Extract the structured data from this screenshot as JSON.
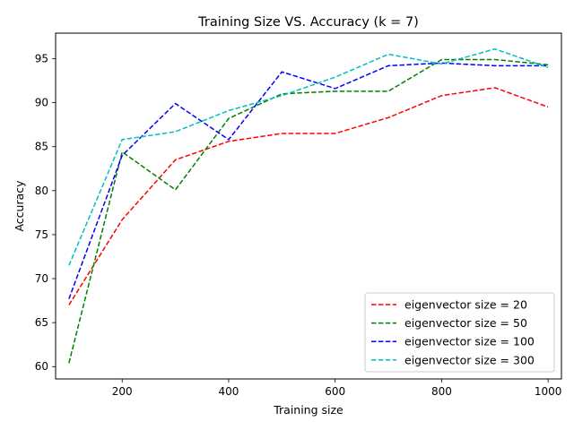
{
  "chart_data": {
    "type": "line",
    "title": "Training Size VS. Accuracy (k = 7)",
    "xlabel": "Training size",
    "ylabel": "Accuracy",
    "xlim": [
      75,
      1025
    ],
    "ylim": [
      58.6,
      97.9
    ],
    "xticks": [
      200,
      400,
      600,
      800,
      1000
    ],
    "yticks": [
      60,
      65,
      70,
      75,
      80,
      85,
      90,
      95
    ],
    "x": [
      100,
      200,
      300,
      400,
      500,
      600,
      700,
      800,
      900,
      1000
    ],
    "series": [
      {
        "name": "eigenvector size = 20",
        "color": "#ff0000",
        "values": [
          67.0,
          76.7,
          83.5,
          85.6,
          86.5,
          86.5,
          88.3,
          90.8,
          91.7,
          89.5
        ]
      },
      {
        "name": "eigenvector size = 50",
        "color": "#008000",
        "values": [
          60.4,
          84.4,
          80.1,
          88.2,
          91.0,
          91.3,
          91.3,
          94.9,
          94.9,
          94.3
        ]
      },
      {
        "name": "eigenvector size = 100",
        "color": "#0000ff",
        "values": [
          67.7,
          84.0,
          89.9,
          85.8,
          93.5,
          91.6,
          94.2,
          94.5,
          94.2,
          94.2
        ]
      },
      {
        "name": "eigenvector size = 300",
        "color": "#00bfbf",
        "values": [
          71.5,
          85.8,
          86.7,
          89.1,
          90.8,
          92.9,
          95.5,
          94.4,
          96.1,
          94.0
        ]
      }
    ],
    "legend_position": "bottom-right",
    "grid": false
  }
}
